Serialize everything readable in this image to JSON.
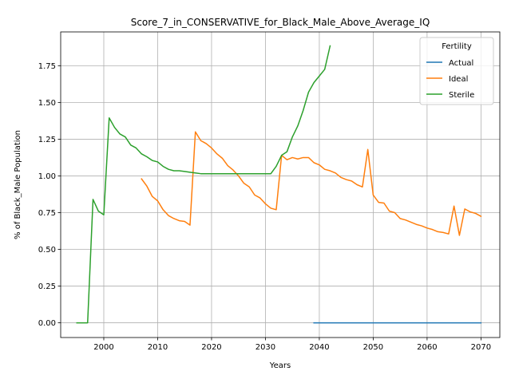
{
  "chart_data": {
    "type": "line",
    "title": "Score_7_in_CONSERVATIVE_for_Black_Male_Above_Average_IQ",
    "xlabel": "Years",
    "ylabel": "% of Black_Male Population",
    "xlim": [
      1992,
      2073.5
    ],
    "ylim": [
      -0.1,
      1.98
    ],
    "xticks": [
      2000,
      2010,
      2020,
      2030,
      2040,
      2050,
      2060,
      2070
    ],
    "yticks": [
      0.0,
      0.25,
      0.5,
      0.75,
      1.0,
      1.25,
      1.5,
      1.75
    ],
    "ytick_labels": [
      "0.00",
      "0.25",
      "0.50",
      "0.75",
      "1.00",
      "1.25",
      "1.50",
      "1.75"
    ],
    "grid": true,
    "legend": {
      "title": "Fertility",
      "placement": "top-right"
    },
    "series": [
      {
        "name": "Actual",
        "color": "#1f77b4",
        "points": [
          [
            2039,
            0.0
          ],
          [
            2045,
            0.0
          ],
          [
            2050,
            0.0
          ],
          [
            2055,
            0.0
          ],
          [
            2060,
            0.0
          ],
          [
            2065,
            0.0
          ],
          [
            2070,
            0.0
          ]
        ]
      },
      {
        "name": "Ideal",
        "color": "#ff7f0e",
        "points": [
          [
            2007,
            0.98
          ],
          [
            2008,
            0.93
          ],
          [
            2009,
            0.86
          ],
          [
            2010,
            0.83
          ],
          [
            2011,
            0.77
          ],
          [
            2012,
            0.73
          ],
          [
            2013,
            0.71
          ],
          [
            2014,
            0.695
          ],
          [
            2015,
            0.69
          ],
          [
            2016,
            0.665
          ],
          [
            2017,
            1.3
          ],
          [
            2018,
            1.24
          ],
          [
            2019,
            1.22
          ],
          [
            2020,
            1.19
          ],
          [
            2021,
            1.15
          ],
          [
            2022,
            1.12
          ],
          [
            2023,
            1.07
          ],
          [
            2024,
            1.04
          ],
          [
            2025,
            1.0
          ],
          [
            2026,
            0.95
          ],
          [
            2027,
            0.925
          ],
          [
            2028,
            0.87
          ],
          [
            2029,
            0.85
          ],
          [
            2030,
            0.81
          ],
          [
            2031,
            0.78
          ],
          [
            2032,
            0.77
          ],
          [
            2033,
            1.14
          ],
          [
            2034,
            1.11
          ],
          [
            2035,
            1.125
          ],
          [
            2036,
            1.115
          ],
          [
            2037,
            1.125
          ],
          [
            2038,
            1.125
          ],
          [
            2039,
            1.09
          ],
          [
            2040,
            1.075
          ],
          [
            2041,
            1.045
          ],
          [
            2042,
            1.035
          ],
          [
            2043,
            1.02
          ],
          [
            2044,
            0.99
          ],
          [
            2045,
            0.975
          ],
          [
            2046,
            0.965
          ],
          [
            2047,
            0.94
          ],
          [
            2048,
            0.925
          ],
          [
            2049,
            1.18
          ],
          [
            2050,
            0.87
          ],
          [
            2051,
            0.82
          ],
          [
            2052,
            0.815
          ],
          [
            2053,
            0.76
          ],
          [
            2054,
            0.75
          ],
          [
            2055,
            0.71
          ],
          [
            2056,
            0.7
          ],
          [
            2057,
            0.685
          ],
          [
            2058,
            0.67
          ],
          [
            2059,
            0.66
          ],
          [
            2060,
            0.645
          ],
          [
            2061,
            0.635
          ],
          [
            2062,
            0.62
          ],
          [
            2063,
            0.615
          ],
          [
            2064,
            0.605
          ],
          [
            2065,
            0.795
          ],
          [
            2066,
            0.595
          ],
          [
            2067,
            0.775
          ],
          [
            2068,
            0.755
          ],
          [
            2069,
            0.745
          ],
          [
            2070,
            0.725
          ]
        ]
      },
      {
        "name": "Sterile",
        "color": "#2ca02c",
        "points": [
          [
            1995,
            0.0
          ],
          [
            1996,
            0.0
          ],
          [
            1997,
            0.0
          ],
          [
            1998,
            0.84
          ],
          [
            1999,
            0.76
          ],
          [
            2000,
            0.735
          ],
          [
            2001,
            1.395
          ],
          [
            2002,
            1.33
          ],
          [
            2003,
            1.285
          ],
          [
            2004,
            1.265
          ],
          [
            2005,
            1.21
          ],
          [
            2006,
            1.19
          ],
          [
            2007,
            1.15
          ],
          [
            2008,
            1.13
          ],
          [
            2009,
            1.105
          ],
          [
            2010,
            1.095
          ],
          [
            2011,
            1.065
          ],
          [
            2012,
            1.045
          ],
          [
            2013,
            1.035
          ],
          [
            2014,
            1.035
          ],
          [
            2015,
            1.03
          ],
          [
            2016,
            1.025
          ],
          [
            2017,
            1.02
          ],
          [
            2018,
            1.015
          ],
          [
            2020,
            1.015
          ],
          [
            2025,
            1.015
          ],
          [
            2030,
            1.015
          ],
          [
            2031,
            1.015
          ],
          [
            2032,
            1.065
          ],
          [
            2033,
            1.14
          ],
          [
            2034,
            1.165
          ],
          [
            2035,
            1.265
          ],
          [
            2036,
            1.34
          ],
          [
            2037,
            1.445
          ],
          [
            2038,
            1.57
          ],
          [
            2039,
            1.635
          ],
          [
            2040,
            1.68
          ],
          [
            2041,
            1.725
          ],
          [
            2042,
            1.885
          ]
        ]
      }
    ]
  }
}
